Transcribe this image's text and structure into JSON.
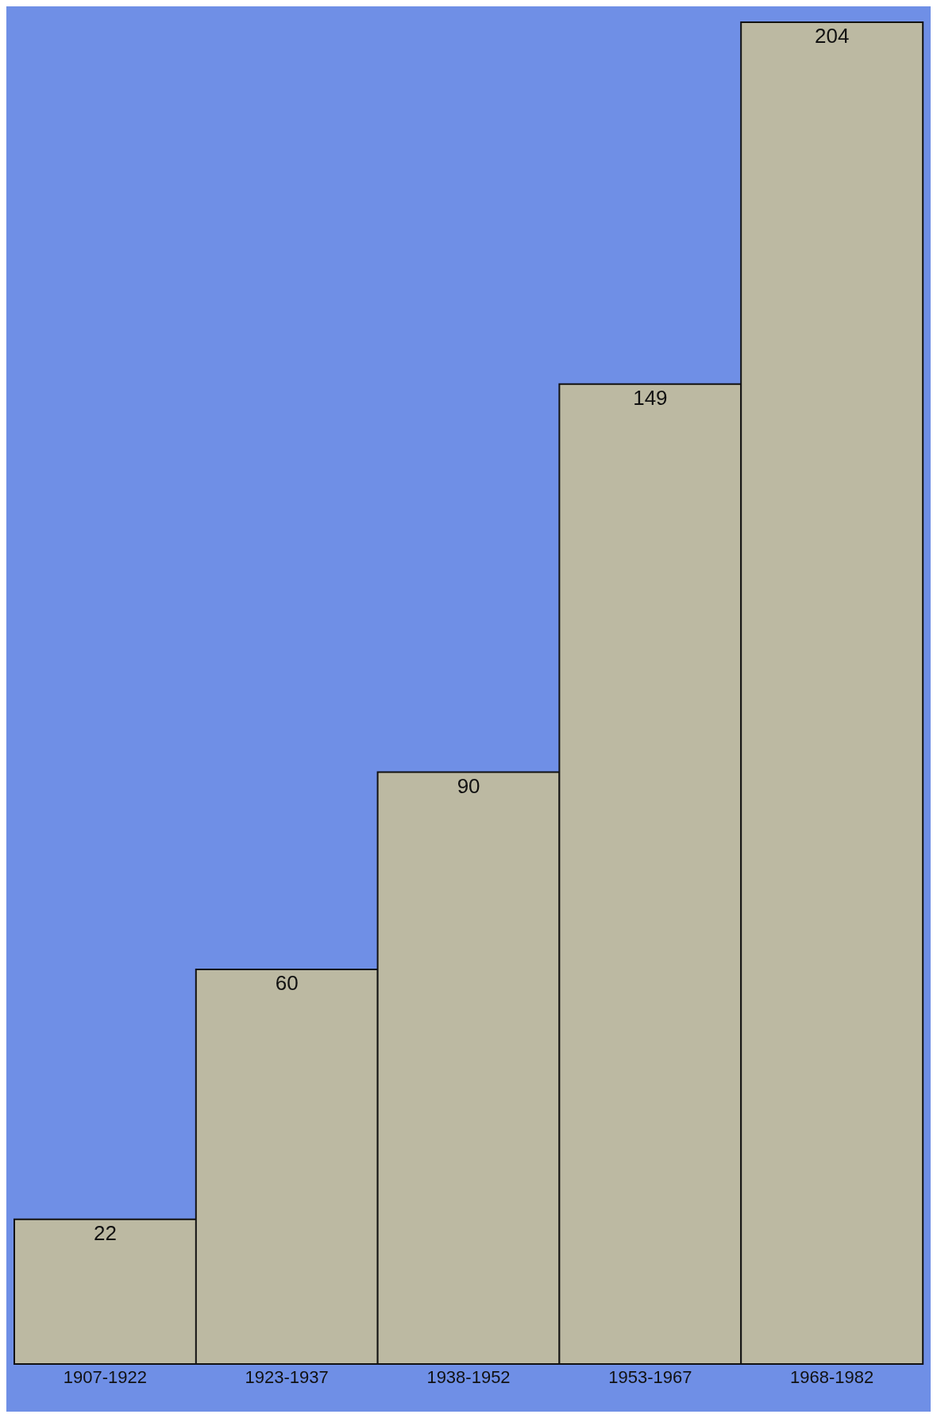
{
  "chart_data": {
    "type": "bar",
    "categories": [
      "1907-1922",
      "1923-1937",
      "1938-1952",
      "1953-1967",
      "1968-1982"
    ],
    "values": [
      22,
      60,
      90,
      149,
      204
    ],
    "color": "#bcb9a2",
    "data_labels": true,
    "tick_labels": "x"
  }
}
